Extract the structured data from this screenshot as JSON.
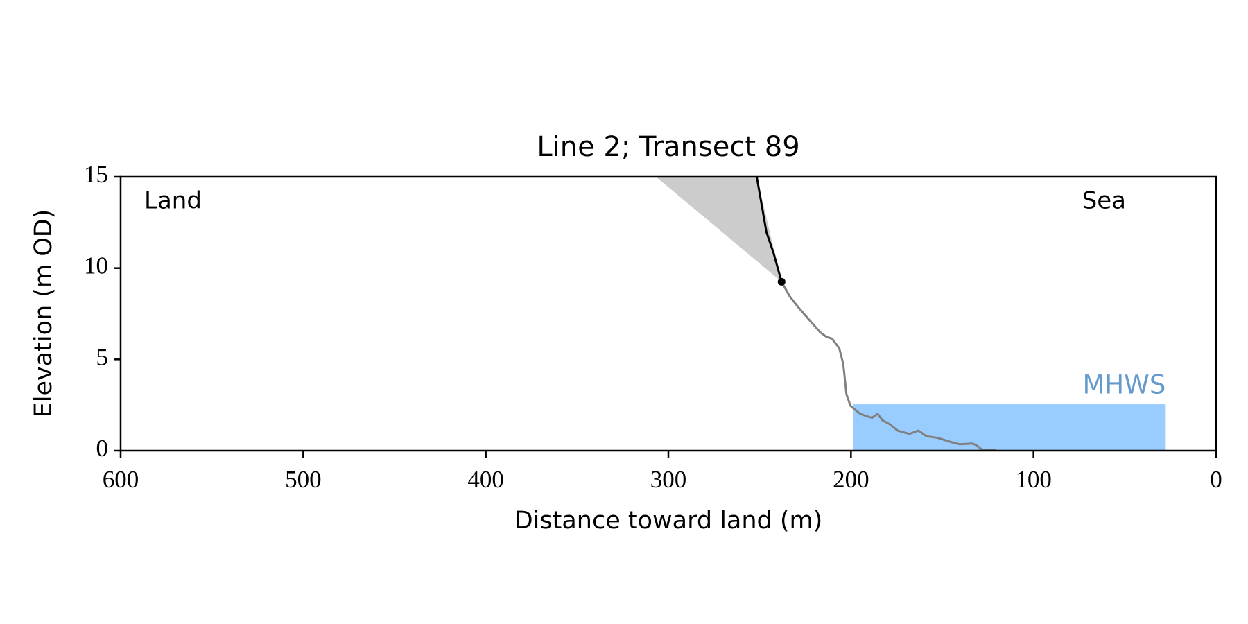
{
  "chart_data": {
    "type": "line",
    "title": "Line 2; Transect 89",
    "xlabel": "Distance toward land (m)",
    "ylabel": "Elevation (m OD)",
    "xlim": [
      600,
      0
    ],
    "xticks": [
      600,
      500,
      400,
      300,
      200,
      100,
      0
    ],
    "ylim": [
      0,
      15
    ],
    "yticks": [
      0,
      5,
      10,
      15
    ],
    "grid": false,
    "series": [
      {
        "color": "#808080",
        "x": [
          238,
          233.6,
          228.8,
          223.5,
          216.9,
          213.4,
          210.4,
          206.4,
          204.2,
          202.5,
          200.3,
          195,
          191.5,
          188.5,
          185.4,
          182.8,
          178.8,
          174.4,
          167.9,
          163,
          158.7,
          152.5,
          145.5,
          140.3,
          133.7,
          131.5,
          128,
          120.5
        ],
        "values": [
          9.25,
          8.46,
          7.85,
          7.24,
          6.49,
          6.23,
          6.14,
          5.61,
          4.74,
          3.11,
          2.46,
          2.02,
          1.89,
          1.8,
          2.02,
          1.67,
          1.45,
          1.1,
          0.92,
          1.1,
          0.79,
          0.7,
          0.48,
          0.35,
          0.39,
          0.31,
          0.04,
          0.04
        ]
      },
      {
        "color": "#000000",
        "x": [
          251.6,
          246.3,
          242.4,
          238
        ],
        "values": [
          15,
          11.97,
          10.83,
          9.25
        ]
      }
    ],
    "fill_regions": [
      {
        "color": "#cccccc",
        "x": [
          306.8,
          251.6,
          238
        ],
        "values": [
          15,
          15,
          9.25
        ]
      }
    ],
    "bands": [
      {
        "label": "MHWS",
        "color": "#99ccff",
        "label_color": "#6699cc",
        "xlim": [
          199,
          27.6
        ],
        "ylim": [
          0,
          2.54
        ]
      }
    ],
    "points": [
      {
        "color": "#000000",
        "x": 238,
        "y": 9.25
      }
    ],
    "annotations": [
      {
        "text": "Land",
        "corner": "upper left"
      },
      {
        "text": "Sea",
        "corner": "upper right"
      }
    ]
  }
}
